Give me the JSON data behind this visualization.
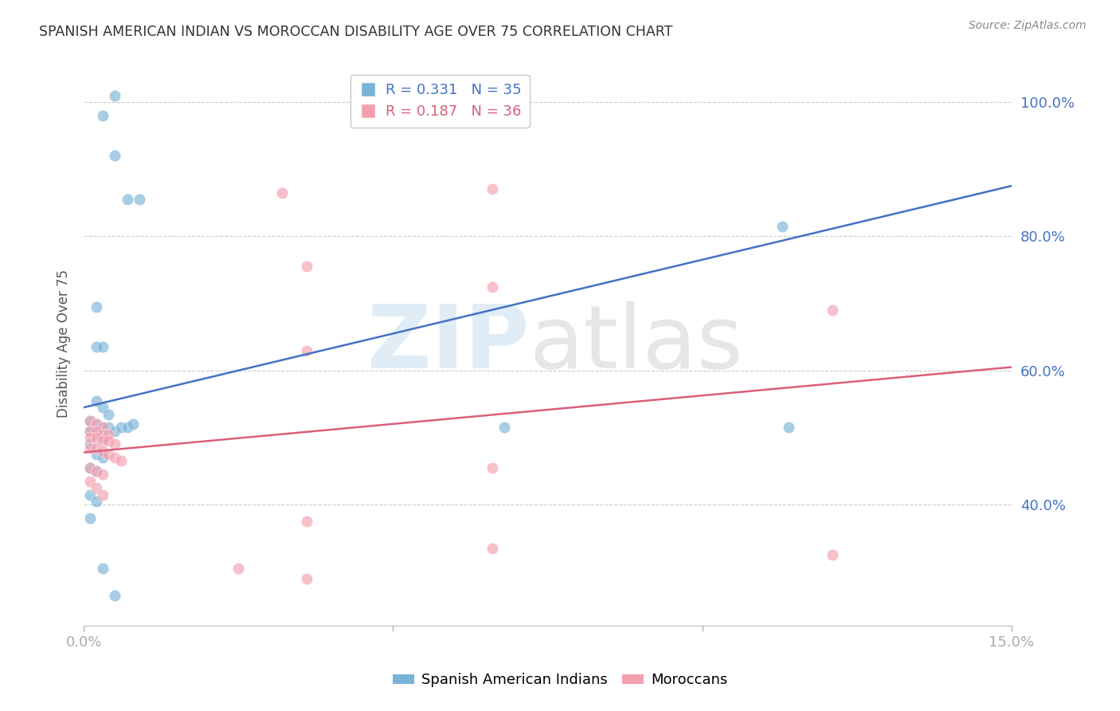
{
  "title": "SPANISH AMERICAN INDIAN VS MOROCCAN DISABILITY AGE OVER 75 CORRELATION CHART",
  "source": "Source: ZipAtlas.com",
  "ylabel": "Disability Age Over 75",
  "legend_labels": [
    "Spanish American Indians",
    "Moroccans"
  ],
  "xlim": [
    0.0,
    0.15
  ],
  "ylim": [
    0.22,
    1.06
  ],
  "yticks": [
    0.4,
    0.6,
    0.8,
    1.0
  ],
  "ytick_labels": [
    "40.0%",
    "60.0%",
    "80.0%",
    "100.0%"
  ],
  "blue_color": "#7ab3d8",
  "pink_color": "#f4a0b0",
  "blue_line_color": "#4472c4",
  "pink_line_color": "#d9607a",
  "grid_color": "#cccccc",
  "title_color": "#333333",
  "axis_label_color": "#4472c4",
  "blue_scatter": [
    [
      0.003,
      0.98
    ],
    [
      0.005,
      0.92
    ],
    [
      0.007,
      0.855
    ],
    [
      0.009,
      0.855
    ],
    [
      0.002,
      0.695
    ],
    [
      0.002,
      0.635
    ],
    [
      0.003,
      0.635
    ],
    [
      0.002,
      0.555
    ],
    [
      0.003,
      0.545
    ],
    [
      0.004,
      0.535
    ],
    [
      0.001,
      0.525
    ],
    [
      0.002,
      0.52
    ],
    [
      0.003,
      0.515
    ],
    [
      0.004,
      0.515
    ],
    [
      0.005,
      0.51
    ],
    [
      0.006,
      0.515
    ],
    [
      0.007,
      0.515
    ],
    [
      0.008,
      0.52
    ],
    [
      0.001,
      0.51
    ],
    [
      0.002,
      0.505
    ],
    [
      0.003,
      0.5
    ],
    [
      0.001,
      0.49
    ],
    [
      0.002,
      0.475
    ],
    [
      0.003,
      0.47
    ],
    [
      0.001,
      0.455
    ],
    [
      0.002,
      0.45
    ],
    [
      0.001,
      0.415
    ],
    [
      0.002,
      0.405
    ],
    [
      0.001,
      0.38
    ],
    [
      0.003,
      0.305
    ],
    [
      0.005,
      0.265
    ],
    [
      0.068,
      0.515
    ],
    [
      0.114,
      0.515
    ],
    [
      0.113,
      0.815
    ],
    [
      0.005,
      1.01
    ]
  ],
  "pink_scatter": [
    [
      0.001,
      0.525
    ],
    [
      0.002,
      0.52
    ],
    [
      0.003,
      0.515
    ],
    [
      0.001,
      0.51
    ],
    [
      0.002,
      0.51
    ],
    [
      0.003,
      0.505
    ],
    [
      0.004,
      0.505
    ],
    [
      0.001,
      0.5
    ],
    [
      0.002,
      0.5
    ],
    [
      0.003,
      0.495
    ],
    [
      0.004,
      0.495
    ],
    [
      0.005,
      0.49
    ],
    [
      0.001,
      0.485
    ],
    [
      0.002,
      0.485
    ],
    [
      0.003,
      0.48
    ],
    [
      0.004,
      0.475
    ],
    [
      0.005,
      0.47
    ],
    [
      0.006,
      0.465
    ],
    [
      0.001,
      0.455
    ],
    [
      0.002,
      0.45
    ],
    [
      0.003,
      0.445
    ],
    [
      0.001,
      0.435
    ],
    [
      0.002,
      0.425
    ],
    [
      0.003,
      0.415
    ],
    [
      0.036,
      0.755
    ],
    [
      0.036,
      0.63
    ],
    [
      0.066,
      0.725
    ],
    [
      0.066,
      0.87
    ],
    [
      0.025,
      0.305
    ],
    [
      0.036,
      0.375
    ],
    [
      0.036,
      0.29
    ],
    [
      0.066,
      0.335
    ],
    [
      0.066,
      0.455
    ],
    [
      0.121,
      0.325
    ],
    [
      0.121,
      0.69
    ],
    [
      0.032,
      0.865
    ]
  ],
  "blue_line": {
    "x0": 0.0,
    "y0": 0.545,
    "x1": 0.15,
    "y1": 0.875
  },
  "pink_line": {
    "x0": 0.0,
    "y0": 0.478,
    "x1": 0.15,
    "y1": 0.605
  },
  "blue_R": "0.331",
  "blue_N": "35",
  "pink_R": "0.187",
  "pink_N": "36"
}
